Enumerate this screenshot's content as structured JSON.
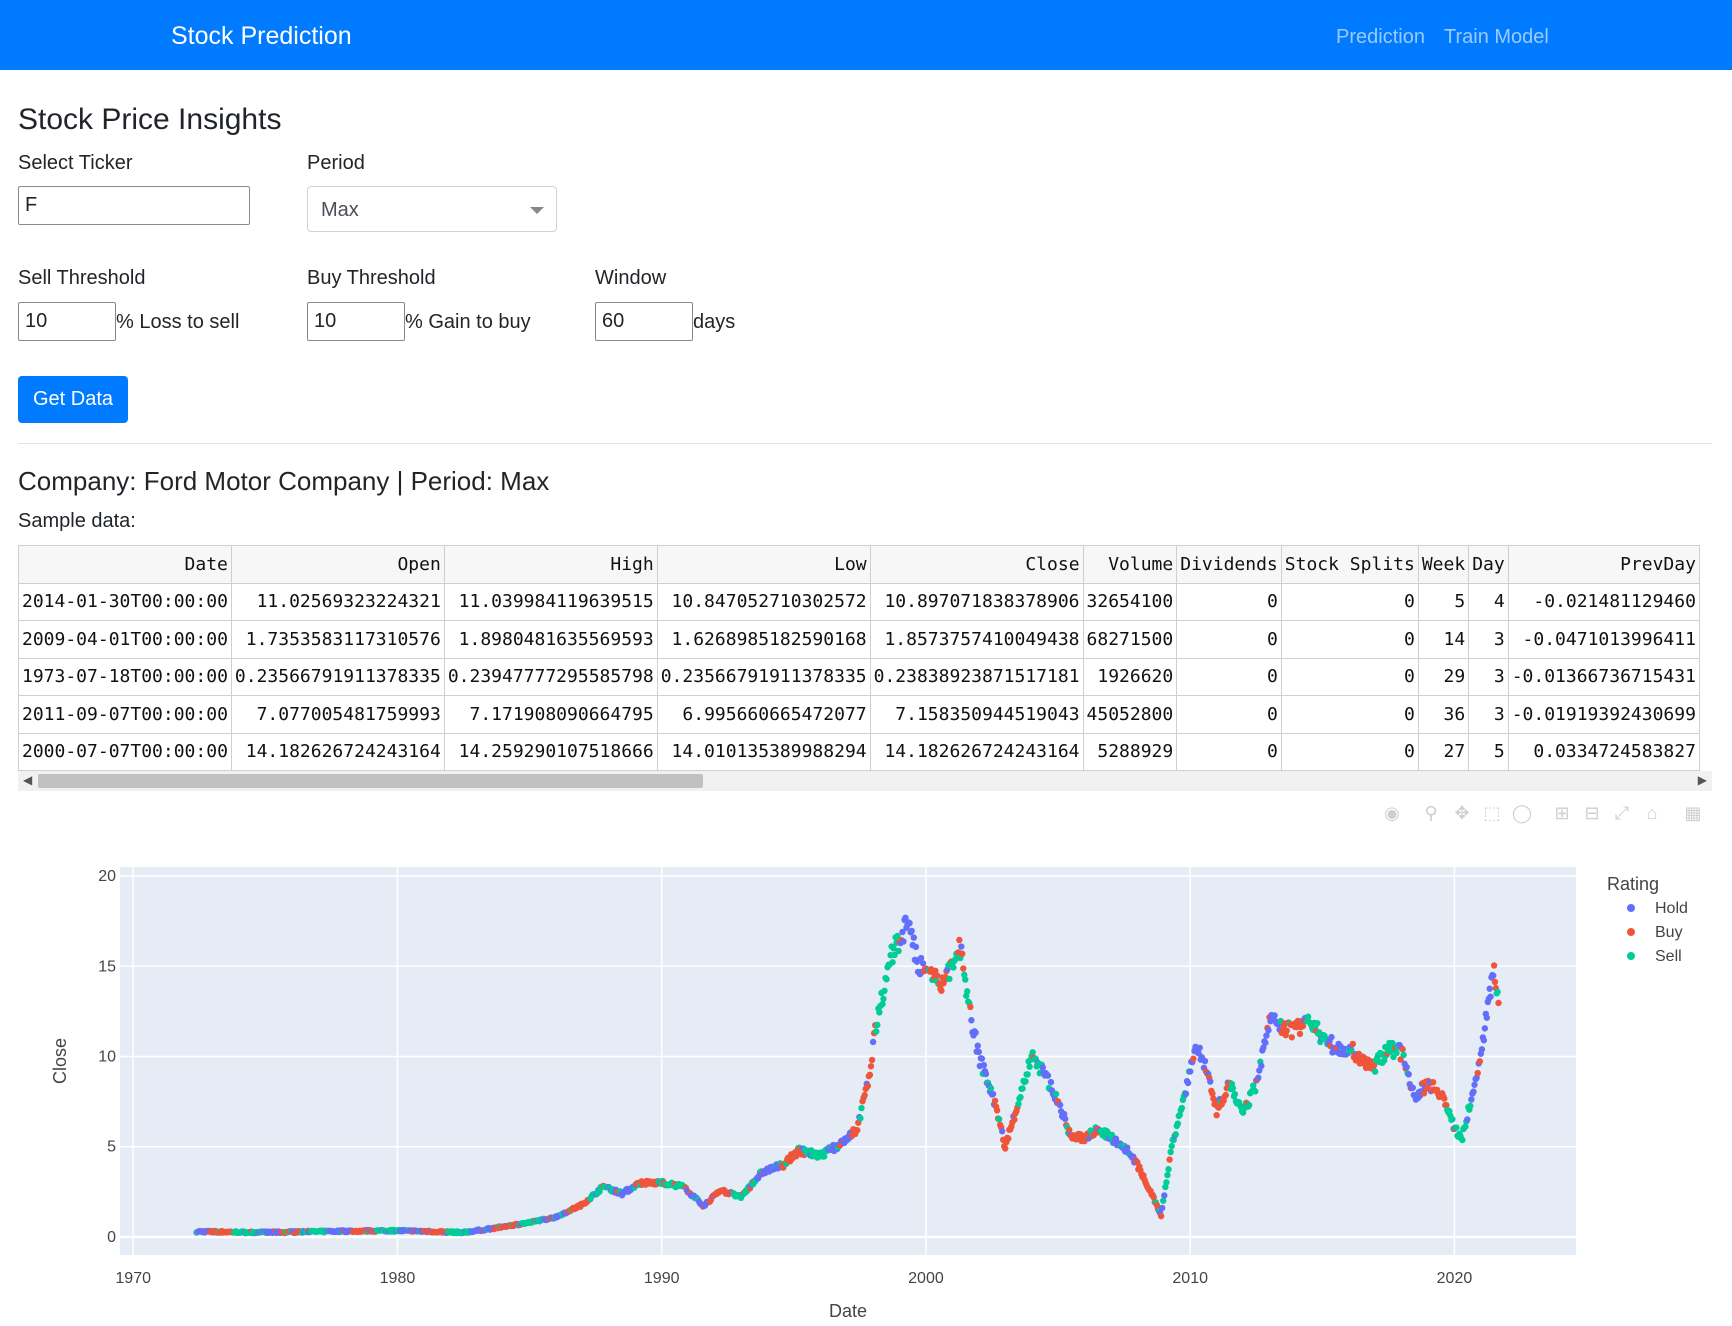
{
  "navbar": {
    "brand": "Stock Prediction",
    "links": [
      "Prediction",
      "Train Model"
    ],
    "bg_color": "#007bff"
  },
  "page": {
    "title": "Stock Price Insights"
  },
  "form": {
    "ticker_label": "Select Ticker",
    "ticker_value": "F",
    "period_label": "Period",
    "period_value": "Max",
    "sell_label": "Sell Threshold",
    "sell_value": "10",
    "sell_suffix": "% Loss to sell",
    "buy_label": "Buy Threshold",
    "buy_value": "10",
    "buy_suffix": "% Gain to buy",
    "window_label": "Window",
    "window_value": "60",
    "window_suffix": "days",
    "submit_label": "Get Data"
  },
  "result": {
    "company_title": "Company: Ford Motor Company | Period: Max",
    "sample_label": "Sample data:"
  },
  "table": {
    "columns": [
      "Date",
      "Open",
      "High",
      "Low",
      "Close",
      "Volume",
      "Dividends",
      "Stock Splits",
      "Week",
      "Day",
      "PrevDay"
    ],
    "rows": [
      [
        "2014-01-30T00:00:00",
        "11.02569323224321",
        "11.039984119639515",
        "10.847052710302572",
        "10.897071838378906",
        "32654100",
        "0",
        "0",
        "5",
        "4",
        "-0.021481129460"
      ],
      [
        "2009-04-01T00:00:00",
        "1.7353583117310576",
        "1.8980481635569593",
        "1.6268985182590168",
        "1.8573757410049438",
        "68271500",
        "0",
        "0",
        "14",
        "3",
        "-0.0471013996411"
      ],
      [
        "1973-07-18T00:00:00",
        "0.23566791911378335",
        "0.23947777295585798",
        "0.23566791911378335",
        "0.23838923871517181",
        "1926620",
        "0",
        "0",
        "29",
        "3",
        "-0.01366736715431"
      ],
      [
        "2011-09-07T00:00:00",
        "7.077005481759993",
        "7.171908090664795",
        "6.995660665472077",
        "7.158350944519043",
        "45052800",
        "0",
        "0",
        "36",
        "3",
        "-0.01919392430699"
      ],
      [
        "2000-07-07T00:00:00",
        "14.182626724243164",
        "14.259290107518666",
        "14.010135389988294",
        "14.182626724243164",
        "5288929",
        "0",
        "0",
        "27",
        "5",
        "0.0334724583827"
      ]
    ]
  },
  "modebar": {
    "icons": [
      "camera-icon",
      "zoom-icon",
      "pan-icon",
      "box-select-icon",
      "lasso-select-icon",
      "zoom-in-icon",
      "zoom-out-icon",
      "autoscale-icon",
      "reset-axes-icon",
      "plotly-logo-icon"
    ]
  },
  "chart_data": {
    "type": "scatter",
    "xlabel": "Date",
    "ylabel": "Close",
    "xlim": [
      1969.5,
      2024.6
    ],
    "ylim": [
      -1,
      20.5
    ],
    "x_ticks": [
      1970,
      1980,
      1990,
      2000,
      2010,
      2020
    ],
    "y_ticks": [
      0,
      5,
      10,
      15,
      20
    ],
    "grid": true,
    "legend_title": "Rating",
    "legend_position": "right",
    "series": [
      {
        "name": "Hold",
        "color": "#636efa"
      },
      {
        "name": "Buy",
        "color": "#ef553b"
      },
      {
        "name": "Sell",
        "color": "#00cc96"
      }
    ],
    "close_curve": {
      "x": [
        1972.4,
        1975.0,
        1978.0,
        1980.0,
        1982.5,
        1983.5,
        1985.0,
        1986.0,
        1987.0,
        1987.8,
        1988.5,
        1989.2,
        1990.0,
        1990.8,
        1991.6,
        1992.2,
        1993.0,
        1993.8,
        1994.6,
        1995.2,
        1996.0,
        1996.6,
        1997.4,
        1997.8,
        1998.2,
        1998.7,
        1999.3,
        1999.7,
        2000.2,
        2000.7,
        2001.3,
        2001.6,
        2002.0,
        2002.5,
        2003.0,
        2003.5,
        2004.0,
        2004.5,
        2005.0,
        2005.5,
        2006.0,
        2006.5,
        2007.0,
        2007.5,
        2008.0,
        2008.5,
        2008.9,
        2009.3,
        2009.8,
        2010.2,
        2010.6,
        2011.0,
        2011.5,
        2012.0,
        2012.5,
        2013.0,
        2013.5,
        2014.0,
        2014.5,
        2015.0,
        2015.5,
        2016.0,
        2016.5,
        2017.0,
        2017.5,
        2018.0,
        2018.5,
        2019.0,
        2019.5,
        2020.0,
        2020.3,
        2020.6,
        2021.0,
        2021.3,
        2021.5,
        2021.7
      ],
      "y": [
        0.3,
        0.25,
        0.32,
        0.35,
        0.25,
        0.45,
        0.8,
        1.1,
        1.8,
        2.8,
        2.4,
        3.0,
        3.0,
        2.8,
        1.7,
        2.6,
        2.2,
        3.6,
        4.0,
        4.8,
        4.5,
        5.0,
        6.0,
        8.5,
        12.5,
        15.5,
        17.5,
        15.0,
        14.5,
        14.0,
        16.0,
        13.0,
        10.0,
        8.0,
        5.0,
        7.5,
        10.0,
        9.0,
        7.5,
        5.5,
        5.5,
        6.0,
        5.5,
        5.0,
        4.0,
        2.5,
        1.2,
        5.0,
        8.0,
        10.5,
        9.5,
        7.0,
        8.5,
        6.8,
        8.5,
        12.0,
        11.5,
        11.5,
        12.2,
        11.0,
        10.5,
        10.5,
        9.8,
        9.5,
        10.5,
        10.2,
        7.8,
        8.5,
        8.0,
        6.0,
        5.5,
        7.5,
        10.0,
        13.5,
        14.5,
        13.0
      ]
    }
  }
}
